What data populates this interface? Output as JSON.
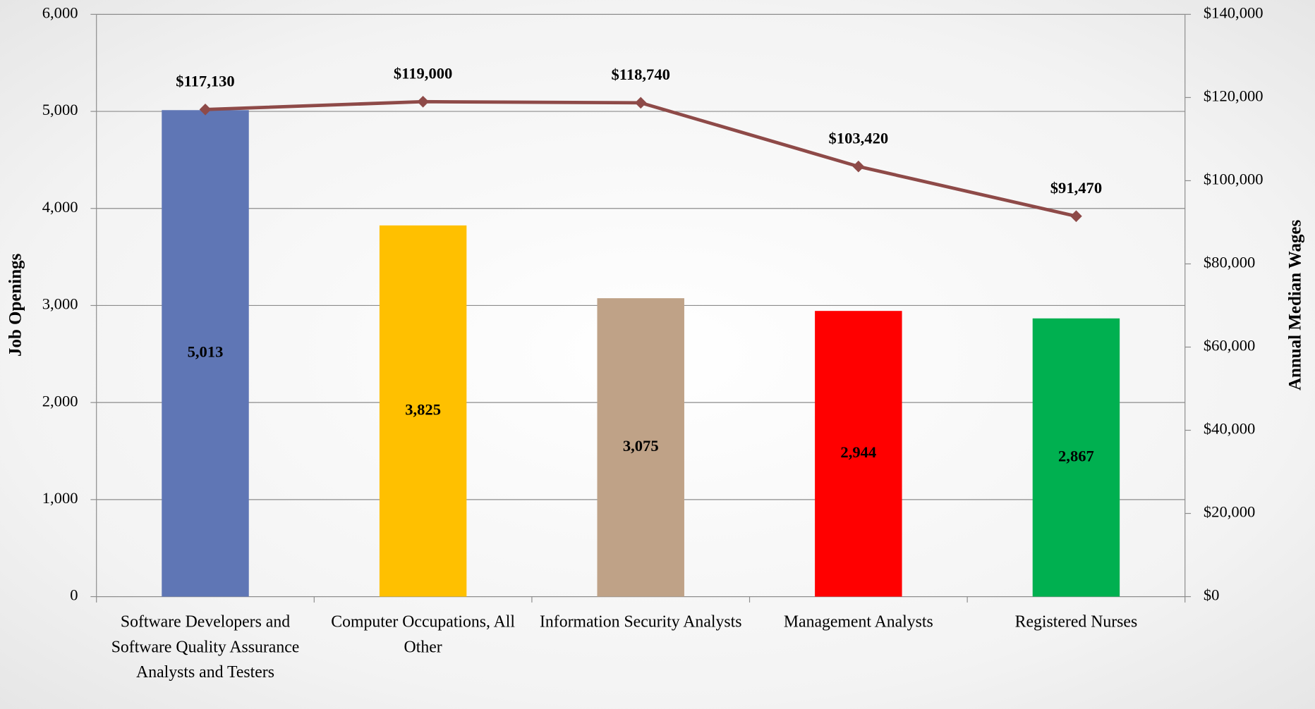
{
  "chart_data": {
    "type": "bar-line",
    "categories": [
      "Software Developers and Software Quality Assurance Analysts and Testers",
      "Computer Occupations, All Other",
      "Information Security Analysts",
      "Management Analysts",
      "Registered Nurses"
    ],
    "y_label": "Job Openings",
    "y2_label": "Annual Median Wages",
    "ylim": [
      0,
      6000
    ],
    "yticks": [
      0,
      {
        "value": 1000,
        "label": "1,000"
      },
      {
        "value": 2000,
        "label": "2,000"
      },
      {
        "value": 3000,
        "label": "3,000"
      },
      {
        "value": 4000,
        "label": "4,000"
      },
      {
        "value": 5000,
        "label": "5,000"
      },
      {
        "value": 6000,
        "label": "6,000"
      }
    ],
    "y2lim": [
      0,
      140000
    ],
    "y2ticks": [
      {
        "value": 0,
        "label": "$0"
      },
      {
        "value": 20000,
        "label": "$20,000"
      },
      {
        "value": 40000,
        "label": "$40,000"
      },
      {
        "value": 60000,
        "label": "$60,000"
      },
      {
        "value": 80000,
        "label": "$80,000"
      },
      {
        "value": 100000,
        "label": "$100,000"
      },
      {
        "value": 120000,
        "label": "$120,000"
      },
      {
        "value": 140000,
        "label": "$140,000"
      }
    ],
    "grid": true,
    "series": [
      {
        "type": "bar",
        "colors": [
          "#5f76b5",
          "#ffc000",
          "#bfa287",
          "#ff0000",
          "#00b050"
        ],
        "values": [
          5013,
          3825,
          3075,
          2944,
          2867
        ],
        "value_labels": [
          "5,013",
          "3,825",
          "3,075",
          "2,944",
          "2,867"
        ]
      },
      {
        "type": "line",
        "axis": "y2",
        "color": "#8e4a48",
        "values": [
          117130,
          119000,
          118740,
          103420,
          91470
        ],
        "value_labels": [
          "$117,130",
          "$119,000",
          "$118,740",
          "$103,420",
          "$91,470"
        ]
      }
    ]
  }
}
